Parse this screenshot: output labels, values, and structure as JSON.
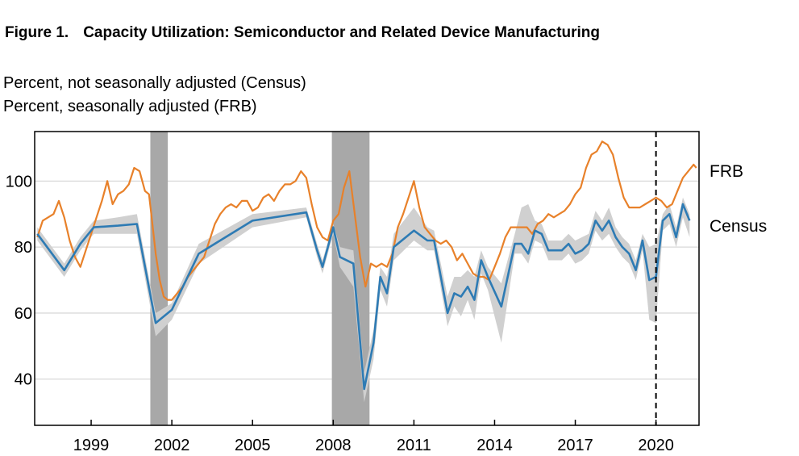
{
  "figure": {
    "number": "Figure 1.",
    "title": "Capacity Utilization: Semiconductor and Related Device Manufacturing",
    "unit_lines": [
      "Percent, not seasonally adjusted (Census)",
      "Percent, seasonally adjusted (FRB)"
    ]
  },
  "colors": {
    "frb": "#E8812A",
    "census": "#2E7BB4",
    "band": "#D0D0D0",
    "recession": "#A8A8A8",
    "grid": "#D9D9D9"
  },
  "chart_data": {
    "type": "line",
    "title": "Capacity Utilization: Semiconductor and Related Device Manufacturing",
    "xlabel": "",
    "ylabel": "Percent",
    "xlim": [
      1996.9,
      2021.6
    ],
    "ylim": [
      26,
      115
    ],
    "x_ticks": [
      "1999",
      "2002",
      "2005",
      "2008",
      "2011",
      "2014",
      "2017",
      "2020"
    ],
    "y_ticks": [
      "40",
      "60",
      "80",
      "100"
    ],
    "recessions": [
      [
        2001.2,
        2001.85
      ],
      [
        2007.95,
        2009.35
      ]
    ],
    "vertical_marker": {
      "x": 2020.0,
      "style": "dashed"
    },
    "series": [
      {
        "name": "FRB",
        "points": [
          [
            1997.0,
            83
          ],
          [
            1997.2,
            88
          ],
          [
            1997.4,
            89
          ],
          [
            1997.6,
            90
          ],
          [
            1997.8,
            94
          ],
          [
            1998.0,
            89
          ],
          [
            1998.2,
            82
          ],
          [
            1998.4,
            77
          ],
          [
            1998.6,
            74
          ],
          [
            1998.8,
            79
          ],
          [
            1999.0,
            84
          ],
          [
            1999.2,
            89
          ],
          [
            1999.4,
            94
          ],
          [
            1999.6,
            100
          ],
          [
            1999.8,
            93
          ],
          [
            2000.0,
            96
          ],
          [
            2000.2,
            97
          ],
          [
            2000.4,
            99
          ],
          [
            2000.6,
            104
          ],
          [
            2000.8,
            103
          ],
          [
            2001.0,
            97
          ],
          [
            2001.15,
            96
          ],
          [
            2001.25,
            89
          ],
          [
            2001.4,
            78
          ],
          [
            2001.55,
            70
          ],
          [
            2001.7,
            65
          ],
          [
            2001.85,
            64
          ],
          [
            2002.0,
            64
          ],
          [
            2002.2,
            66
          ],
          [
            2002.4,
            68
          ],
          [
            2002.6,
            71
          ],
          [
            2002.8,
            73
          ],
          [
            2003.0,
            75
          ],
          [
            2003.2,
            77
          ],
          [
            2003.4,
            82
          ],
          [
            2003.6,
            87
          ],
          [
            2003.8,
            90
          ],
          [
            2004.0,
            92
          ],
          [
            2004.2,
            93
          ],
          [
            2004.4,
            92
          ],
          [
            2004.6,
            94
          ],
          [
            2004.8,
            94
          ],
          [
            2005.0,
            91
          ],
          [
            2005.2,
            92
          ],
          [
            2005.4,
            95
          ],
          [
            2005.6,
            96
          ],
          [
            2005.8,
            94
          ],
          [
            2006.0,
            97
          ],
          [
            2006.2,
            99
          ],
          [
            2006.4,
            99
          ],
          [
            2006.6,
            100
          ],
          [
            2006.8,
            103
          ],
          [
            2007.0,
            101
          ],
          [
            2007.2,
            93
          ],
          [
            2007.4,
            86
          ],
          [
            2007.6,
            83
          ],
          [
            2007.8,
            82
          ],
          [
            2008.0,
            88
          ],
          [
            2008.2,
            90
          ],
          [
            2008.4,
            98
          ],
          [
            2008.6,
            103
          ],
          [
            2008.8,
            90
          ],
          [
            2009.0,
            77
          ],
          [
            2009.2,
            68
          ],
          [
            2009.4,
            75
          ],
          [
            2009.6,
            74
          ],
          [
            2009.8,
            75
          ],
          [
            2010.0,
            74
          ],
          [
            2010.2,
            78
          ],
          [
            2010.4,
            86
          ],
          [
            2010.6,
            90
          ],
          [
            2010.8,
            95
          ],
          [
            2011.0,
            100
          ],
          [
            2011.2,
            92
          ],
          [
            2011.4,
            86
          ],
          [
            2011.6,
            84
          ],
          [
            2011.8,
            82
          ],
          [
            2012.0,
            81
          ],
          [
            2012.2,
            82
          ],
          [
            2012.4,
            80
          ],
          [
            2012.6,
            76
          ],
          [
            2012.8,
            78
          ],
          [
            2013.0,
            75
          ],
          [
            2013.2,
            72
          ],
          [
            2013.4,
            71
          ],
          [
            2013.6,
            71
          ],
          [
            2013.8,
            70
          ],
          [
            2014.0,
            74
          ],
          [
            2014.2,
            78
          ],
          [
            2014.4,
            83
          ],
          [
            2014.6,
            86
          ],
          [
            2014.8,
            86
          ],
          [
            2015.0,
            86
          ],
          [
            2015.2,
            86
          ],
          [
            2015.4,
            84
          ],
          [
            2015.6,
            87
          ],
          [
            2015.8,
            88
          ],
          [
            2016.0,
            90
          ],
          [
            2016.2,
            89
          ],
          [
            2016.4,
            90
          ],
          [
            2016.6,
            91
          ],
          [
            2016.8,
            93
          ],
          [
            2017.0,
            96
          ],
          [
            2017.2,
            98
          ],
          [
            2017.4,
            104
          ],
          [
            2017.6,
            108
          ],
          [
            2017.8,
            109
          ],
          [
            2018.0,
            112
          ],
          [
            2018.2,
            111
          ],
          [
            2018.4,
            108
          ],
          [
            2018.6,
            101
          ],
          [
            2018.8,
            95
          ],
          [
            2019.0,
            92
          ],
          [
            2019.2,
            92
          ],
          [
            2019.4,
            92
          ],
          [
            2019.6,
            93
          ],
          [
            2019.8,
            94
          ],
          [
            2020.0,
            95
          ],
          [
            2020.2,
            94
          ],
          [
            2020.4,
            92
          ],
          [
            2020.6,
            93
          ],
          [
            2020.8,
            97
          ],
          [
            2021.0,
            101
          ],
          [
            2021.2,
            103
          ],
          [
            2021.4,
            105
          ],
          [
            2021.5,
            104
          ]
        ]
      },
      {
        "name": "Census",
        "points": [
          [
            1997.0,
            84
          ],
          [
            1998.0,
            73
          ],
          [
            1998.6,
            81
          ],
          [
            1999.1,
            86
          ],
          [
            2000.0,
            86.5
          ],
          [
            2000.7,
            87
          ],
          [
            2001.4,
            57
          ],
          [
            2002.0,
            61
          ],
          [
            2003.0,
            78
          ],
          [
            2005.0,
            88
          ],
          [
            2007.0,
            90.5
          ],
          [
            2007.4,
            79
          ],
          [
            2007.6,
            74
          ],
          [
            2008.0,
            86
          ],
          [
            2008.25,
            77
          ],
          [
            2008.75,
            75
          ],
          [
            2009.15,
            37
          ],
          [
            2009.5,
            51
          ],
          [
            2009.75,
            71
          ],
          [
            2010.0,
            66
          ],
          [
            2010.25,
            80
          ],
          [
            2011.0,
            85
          ],
          [
            2011.5,
            82
          ],
          [
            2011.75,
            82
          ],
          [
            2012.25,
            60
          ],
          [
            2012.5,
            66
          ],
          [
            2012.75,
            65
          ],
          [
            2013.0,
            68
          ],
          [
            2013.25,
            64
          ],
          [
            2013.5,
            76
          ],
          [
            2013.75,
            71
          ],
          [
            2014.25,
            62
          ],
          [
            2014.75,
            81
          ],
          [
            2015.0,
            81
          ],
          [
            2015.25,
            78
          ],
          [
            2015.5,
            85
          ],
          [
            2015.75,
            84
          ],
          [
            2016.0,
            79
          ],
          [
            2016.5,
            79
          ],
          [
            2016.75,
            81
          ],
          [
            2017.0,
            78
          ],
          [
            2017.25,
            79
          ],
          [
            2017.5,
            81
          ],
          [
            2017.75,
            88
          ],
          [
            2018.0,
            85
          ],
          [
            2018.25,
            88
          ],
          [
            2018.5,
            83
          ],
          [
            2018.75,
            80
          ],
          [
            2019.0,
            78
          ],
          [
            2019.25,
            73
          ],
          [
            2019.5,
            82
          ],
          [
            2019.75,
            70
          ],
          [
            2020.0,
            71
          ],
          [
            2020.25,
            88
          ],
          [
            2020.5,
            90
          ],
          [
            2020.75,
            83
          ],
          [
            2021.0,
            93
          ],
          [
            2021.25,
            88
          ]
        ],
        "band_upper": [
          [
            1997.0,
            86
          ],
          [
            1998.0,
            75
          ],
          [
            1998.6,
            83
          ],
          [
            1999.1,
            88
          ],
          [
            2000.0,
            89
          ],
          [
            2000.7,
            90
          ],
          [
            2001.4,
            60
          ],
          [
            2002.0,
            63
          ],
          [
            2003.0,
            81
          ],
          [
            2005.0,
            90
          ],
          [
            2007.0,
            92
          ],
          [
            2007.4,
            81
          ],
          [
            2007.6,
            76
          ],
          [
            2008.0,
            87
          ],
          [
            2008.25,
            80
          ],
          [
            2008.75,
            79
          ],
          [
            2009.15,
            42
          ],
          [
            2009.5,
            55
          ],
          [
            2009.75,
            74
          ],
          [
            2010.0,
            71
          ],
          [
            2010.25,
            84
          ],
          [
            2011.0,
            92
          ],
          [
            2011.5,
            86
          ],
          [
            2011.75,
            85
          ],
          [
            2012.25,
            65
          ],
          [
            2012.5,
            71
          ],
          [
            2012.75,
            71
          ],
          [
            2013.0,
            73
          ],
          [
            2013.25,
            71
          ],
          [
            2013.5,
            79
          ],
          [
            2013.75,
            74
          ],
          [
            2014.25,
            69
          ],
          [
            2014.75,
            84
          ],
          [
            2015.0,
            92
          ],
          [
            2015.25,
            93
          ],
          [
            2015.5,
            88
          ],
          [
            2015.75,
            87
          ],
          [
            2016.0,
            82
          ],
          [
            2016.5,
            82
          ],
          [
            2016.75,
            84
          ],
          [
            2017.0,
            82
          ],
          [
            2017.25,
            83
          ],
          [
            2017.5,
            84
          ],
          [
            2017.75,
            91
          ],
          [
            2018.0,
            88
          ],
          [
            2018.25,
            92
          ],
          [
            2018.5,
            86
          ],
          [
            2018.75,
            83
          ],
          [
            2019.0,
            81
          ],
          [
            2019.25,
            76
          ],
          [
            2019.5,
            84
          ],
          [
            2019.75,
            80
          ],
          [
            2020.0,
            81
          ],
          [
            2020.25,
            90
          ],
          [
            2020.5,
            93
          ],
          [
            2020.75,
            86
          ],
          [
            2021.0,
            95
          ],
          [
            2021.25,
            90
          ]
        ],
        "band_lower": [
          [
            1997.0,
            82
          ],
          [
            1998.0,
            71
          ],
          [
            1998.6,
            79
          ],
          [
            1999.1,
            84
          ],
          [
            2000.0,
            84
          ],
          [
            2000.7,
            84
          ],
          [
            2001.4,
            53
          ],
          [
            2002.0,
            58
          ],
          [
            2003.0,
            75
          ],
          [
            2005.0,
            86
          ],
          [
            2007.0,
            89
          ],
          [
            2007.4,
            77
          ],
          [
            2007.6,
            72
          ],
          [
            2008.0,
            84
          ],
          [
            2008.25,
            74
          ],
          [
            2008.75,
            68
          ],
          [
            2009.15,
            33
          ],
          [
            2009.5,
            46
          ],
          [
            2009.75,
            67
          ],
          [
            2010.0,
            62
          ],
          [
            2010.25,
            76
          ],
          [
            2011.0,
            82
          ],
          [
            2011.5,
            79
          ],
          [
            2011.75,
            79
          ],
          [
            2012.25,
            56
          ],
          [
            2012.5,
            62
          ],
          [
            2012.75,
            59
          ],
          [
            2013.0,
            64
          ],
          [
            2013.25,
            58
          ],
          [
            2013.5,
            72
          ],
          [
            2013.75,
            67
          ],
          [
            2014.25,
            51
          ],
          [
            2014.75,
            78
          ],
          [
            2015.0,
            78
          ],
          [
            2015.25,
            75
          ],
          [
            2015.5,
            82
          ],
          [
            2015.75,
            81
          ],
          [
            2016.0,
            76
          ],
          [
            2016.5,
            76
          ],
          [
            2016.75,
            78
          ],
          [
            2017.0,
            75
          ],
          [
            2017.25,
            76
          ],
          [
            2017.5,
            78
          ],
          [
            2017.75,
            85
          ],
          [
            2018.0,
            82
          ],
          [
            2018.25,
            84
          ],
          [
            2018.5,
            80
          ],
          [
            2018.75,
            77
          ],
          [
            2019.0,
            75
          ],
          [
            2019.25,
            70
          ],
          [
            2019.5,
            79
          ],
          [
            2019.75,
            58
          ],
          [
            2020.0,
            57
          ],
          [
            2020.25,
            85
          ],
          [
            2020.5,
            87
          ],
          [
            2020.75,
            80
          ],
          [
            2021.0,
            89
          ],
          [
            2021.25,
            83
          ]
        ]
      }
    ]
  }
}
